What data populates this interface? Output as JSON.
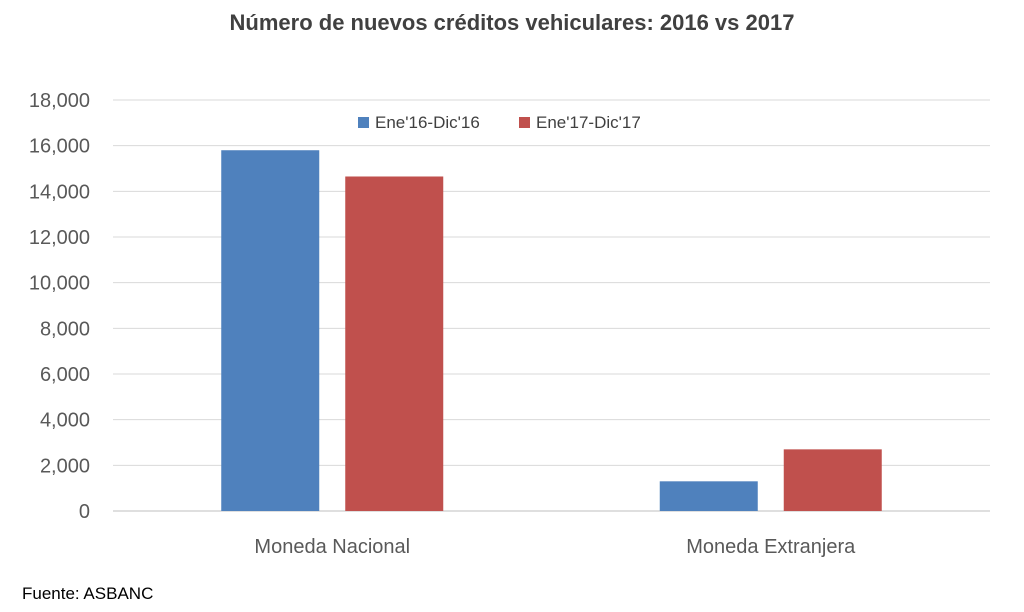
{
  "chart_data": {
    "type": "bar",
    "title": "Número de nuevos créditos vehiculares: 2016 vs 2017",
    "categories": [
      "Moneda Nacional",
      "Moneda Extranjera"
    ],
    "series": [
      {
        "name": "Ene'16-Dic'16",
        "color": "#4F81BD",
        "values": [
          15800,
          1300
        ]
      },
      {
        "name": "Ene'17-Dic'17",
        "color": "#C0504D",
        "values": [
          14650,
          2700
        ]
      }
    ],
    "ylim": [
      0,
      18000
    ],
    "yticks": [
      "0",
      "2,000",
      "4,000",
      "6,000",
      "8,000",
      "10,000",
      "12,000",
      "14,000",
      "16,000",
      "18,000"
    ],
    "ytick_values": [
      0,
      2000,
      4000,
      6000,
      8000,
      10000,
      12000,
      14000,
      16000,
      18000
    ],
    "grid": true,
    "legend_position": "top-center"
  },
  "source": "Fuente: ASBANC"
}
